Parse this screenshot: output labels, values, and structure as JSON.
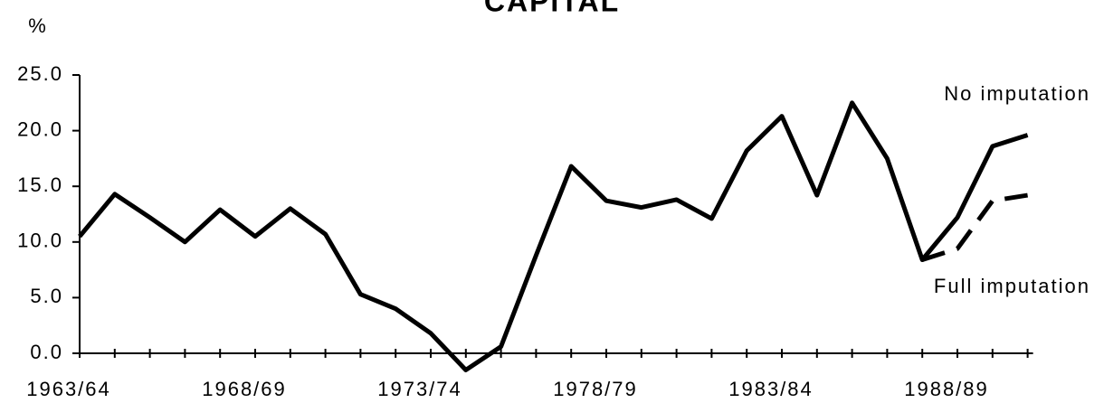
{
  "chart_data": {
    "type": "line",
    "title": "CAPITAL",
    "y_label": "%",
    "categories": [
      "1963/64",
      null,
      null,
      null,
      null,
      "1968/69",
      null,
      null,
      null,
      null,
      "1973/74",
      null,
      null,
      null,
      null,
      "1978/79",
      null,
      null,
      null,
      null,
      "1983/84",
      null,
      null,
      null,
      null,
      "1988/89",
      null,
      null
    ],
    "series": [
      {
        "name": "No imputation",
        "color": "#000000",
        "dash": "solid",
        "values": [
          10.5,
          14.3,
          12.2,
          10.0,
          12.9,
          10.5,
          13.0,
          10.7,
          5.3,
          4.0,
          1.8,
          -1.5,
          0.6,
          8.8,
          16.8,
          13.7,
          13.1,
          13.8,
          12.1,
          18.2,
          21.3,
          14.2,
          22.5,
          17.5,
          8.4,
          12.2,
          18.6,
          19.6
        ]
      },
      {
        "name": "Full imputation",
        "color": "#000000",
        "dash": "dashed",
        "values": [
          null,
          null,
          null,
          null,
          null,
          null,
          null,
          null,
          null,
          null,
          null,
          null,
          null,
          null,
          null,
          null,
          null,
          null,
          null,
          null,
          null,
          null,
          null,
          null,
          8.4,
          9.4,
          13.7,
          14.2
        ]
      }
    ],
    "ylim": [
      0,
      25
    ],
    "yticks": [
      {
        "value": 0,
        "label": "0.0"
      },
      {
        "value": 5,
        "label": "5.0"
      },
      {
        "value": 10,
        "label": "10.0"
      },
      {
        "value": 15,
        "label": "15.0"
      },
      {
        "value": 20,
        "label": "20.0"
      },
      {
        "value": 25,
        "label": "25.0"
      }
    ]
  }
}
